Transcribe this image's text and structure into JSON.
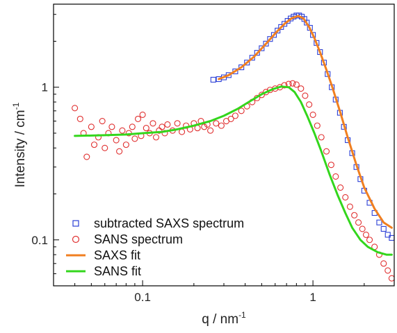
{
  "chart_data": {
    "type": "scatter",
    "xlabel": "q / nm",
    "xlabel_superscript": "-1",
    "ylabel": "Intensity / cm",
    "ylabel_superscript": "-1",
    "xscale": "log",
    "yscale": "log",
    "xlim": [
      0.03,
      3.0
    ],
    "ylim": [
      0.05,
      3.5
    ],
    "x_ticks": [
      {
        "value": 0.1,
        "label": "0.1"
      },
      {
        "value": 1,
        "label": "1"
      }
    ],
    "y_ticks": [
      {
        "value": 0.1,
        "label": "0.1"
      },
      {
        "value": 1,
        "label": "1"
      }
    ],
    "grid": false,
    "legend_position": "bottom-left",
    "series": [
      {
        "name": "subtracted SAXS spectrum",
        "kind": "markers",
        "marker": "square",
        "color": "#2b3fd6",
        "points": [
          [
            0.26,
            1.12
          ],
          [
            0.28,
            1.13
          ],
          [
            0.3,
            1.16
          ],
          [
            0.32,
            1.2
          ],
          [
            0.35,
            1.27
          ],
          [
            0.38,
            1.35
          ],
          [
            0.41,
            1.45
          ],
          [
            0.44,
            1.56
          ],
          [
            0.47,
            1.68
          ],
          [
            0.5,
            1.8
          ],
          [
            0.53,
            1.93
          ],
          [
            0.56,
            2.07
          ],
          [
            0.59,
            2.2
          ],
          [
            0.62,
            2.35
          ],
          [
            0.65,
            2.48
          ],
          [
            0.68,
            2.6
          ],
          [
            0.71,
            2.72
          ],
          [
            0.74,
            2.82
          ],
          [
            0.77,
            2.9
          ],
          [
            0.8,
            2.95
          ],
          [
            0.83,
            2.95
          ],
          [
            0.86,
            2.9
          ],
          [
            0.89,
            2.8
          ],
          [
            0.92,
            2.65
          ],
          [
            0.96,
            2.45
          ],
          [
            1.0,
            2.2
          ],
          [
            1.05,
            1.95
          ],
          [
            1.1,
            1.7
          ],
          [
            1.16,
            1.45
          ],
          [
            1.22,
            1.22
          ],
          [
            1.29,
            1.0
          ],
          [
            1.36,
            0.83
          ],
          [
            1.44,
            0.68
          ],
          [
            1.52,
            0.55
          ],
          [
            1.6,
            0.45
          ],
          [
            1.7,
            0.37
          ],
          [
            1.8,
            0.3
          ],
          [
            1.9,
            0.25
          ],
          [
            2.0,
            0.21
          ],
          [
            2.15,
            0.175
          ],
          [
            2.3,
            0.15
          ],
          [
            2.45,
            0.13
          ],
          [
            2.6,
            0.118
          ],
          [
            2.75,
            0.108
          ],
          [
            2.9,
            0.103
          ]
        ]
      },
      {
        "name": "SANS spectrum",
        "kind": "markers",
        "marker": "circle",
        "color": "#e03030",
        "points": [
          [
            0.04,
            0.73
          ],
          [
            0.043,
            0.62
          ],
          [
            0.045,
            0.5
          ],
          [
            0.047,
            0.35
          ],
          [
            0.05,
            0.55
          ],
          [
            0.052,
            0.42
          ],
          [
            0.055,
            0.47
          ],
          [
            0.058,
            0.6
          ],
          [
            0.06,
            0.4
          ],
          [
            0.063,
            0.5
          ],
          [
            0.066,
            0.55
          ],
          [
            0.07,
            0.45
          ],
          [
            0.073,
            0.38
          ],
          [
            0.076,
            0.52
          ],
          [
            0.08,
            0.42
          ],
          [
            0.083,
            0.5
          ],
          [
            0.087,
            0.55
          ],
          [
            0.09,
            0.46
          ],
          [
            0.094,
            0.62
          ],
          [
            0.098,
            0.48
          ],
          [
            0.1,
            0.66
          ],
          [
            0.105,
            0.54
          ],
          [
            0.11,
            0.5
          ],
          [
            0.115,
            0.58
          ],
          [
            0.12,
            0.47
          ],
          [
            0.125,
            0.52
          ],
          [
            0.13,
            0.55
          ],
          [
            0.135,
            0.5
          ],
          [
            0.14,
            0.57
          ],
          [
            0.15,
            0.52
          ],
          [
            0.16,
            0.58
          ],
          [
            0.17,
            0.51
          ],
          [
            0.18,
            0.56
          ],
          [
            0.19,
            0.53
          ],
          [
            0.2,
            0.58
          ],
          [
            0.21,
            0.54
          ],
          [
            0.22,
            0.6
          ],
          [
            0.23,
            0.55
          ],
          [
            0.24,
            0.57
          ],
          [
            0.25,
            0.52
          ],
          [
            0.27,
            0.58
          ],
          [
            0.29,
            0.56
          ],
          [
            0.31,
            0.6
          ],
          [
            0.33,
            0.62
          ],
          [
            0.35,
            0.65
          ],
          [
            0.38,
            0.7
          ],
          [
            0.41,
            0.75
          ],
          [
            0.44,
            0.8
          ],
          [
            0.47,
            0.85
          ],
          [
            0.5,
            0.89
          ],
          [
            0.53,
            0.93
          ],
          [
            0.56,
            0.96
          ],
          [
            0.6,
            0.98
          ],
          [
            0.64,
            1.0
          ],
          [
            0.68,
            1.03
          ],
          [
            0.72,
            1.05
          ],
          [
            0.76,
            1.06
          ],
          [
            0.8,
            1.04
          ],
          [
            0.85,
            0.98
          ],
          [
            0.9,
            0.88
          ],
          [
            0.95,
            0.77
          ],
          [
            1.0,
            0.66
          ],
          [
            1.06,
            0.56
          ],
          [
            1.12,
            0.47
          ],
          [
            1.2,
            0.38
          ],
          [
            1.28,
            0.31
          ],
          [
            1.36,
            0.26
          ],
          [
            1.45,
            0.22
          ],
          [
            1.55,
            0.19
          ],
          [
            1.65,
            0.165
          ],
          [
            1.75,
            0.145
          ],
          [
            1.85,
            0.13
          ],
          [
            1.95,
            0.118
          ],
          [
            2.05,
            0.108
          ],
          [
            2.15,
            0.1
          ],
          [
            2.3,
            0.09
          ],
          [
            2.45,
            0.08
          ],
          [
            2.6,
            0.07
          ],
          [
            2.75,
            0.063
          ],
          [
            2.9,
            0.056
          ]
        ]
      },
      {
        "name": "SAXS fit",
        "kind": "line",
        "color": "#f07f20",
        "points": [
          [
            0.28,
            1.13
          ],
          [
            0.32,
            1.2
          ],
          [
            0.38,
            1.35
          ],
          [
            0.45,
            1.58
          ],
          [
            0.52,
            1.88
          ],
          [
            0.6,
            2.25
          ],
          [
            0.68,
            2.6
          ],
          [
            0.75,
            2.83
          ],
          [
            0.82,
            2.93
          ],
          [
            0.88,
            2.82
          ],
          [
            0.95,
            2.48
          ],
          [
            1.02,
            2.1
          ],
          [
            1.1,
            1.7
          ],
          [
            1.2,
            1.3
          ],
          [
            1.3,
            1.0
          ],
          [
            1.45,
            0.68
          ],
          [
            1.6,
            0.47
          ],
          [
            1.8,
            0.31
          ],
          [
            2.0,
            0.22
          ],
          [
            2.3,
            0.16
          ],
          [
            2.6,
            0.13
          ],
          [
            2.9,
            0.12
          ]
        ]
      },
      {
        "name": "SANS fit",
        "kind": "line",
        "color": "#33d61c",
        "points": [
          [
            0.04,
            0.48
          ],
          [
            0.06,
            0.485
          ],
          [
            0.08,
            0.49
          ],
          [
            0.1,
            0.5
          ],
          [
            0.13,
            0.51
          ],
          [
            0.16,
            0.53
          ],
          [
            0.2,
            0.56
          ],
          [
            0.25,
            0.6
          ],
          [
            0.3,
            0.65
          ],
          [
            0.36,
            0.72
          ],
          [
            0.42,
            0.8
          ],
          [
            0.5,
            0.9
          ],
          [
            0.58,
            0.97
          ],
          [
            0.65,
            1.01
          ],
          [
            0.72,
            1.0
          ],
          [
            0.78,
            0.93
          ],
          [
            0.85,
            0.8
          ],
          [
            0.93,
            0.64
          ],
          [
            1.02,
            0.5
          ],
          [
            1.12,
            0.38
          ],
          [
            1.25,
            0.27
          ],
          [
            1.4,
            0.195
          ],
          [
            1.55,
            0.15
          ],
          [
            1.7,
            0.12
          ],
          [
            1.9,
            0.1
          ],
          [
            2.1,
            0.09
          ],
          [
            2.4,
            0.083
          ],
          [
            2.7,
            0.08
          ],
          [
            2.9,
            0.08
          ]
        ]
      }
    ]
  }
}
